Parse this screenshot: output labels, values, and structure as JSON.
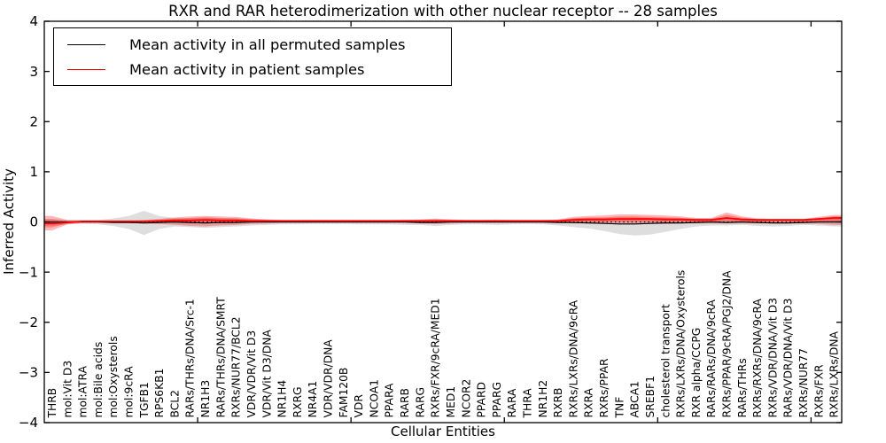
{
  "chart_data": {
    "type": "area",
    "title": "RXR and RAR heterodimerization with other nuclear receptor -- 28 samples",
    "xlabel": "Cellular Entities",
    "ylabel": "Inferred Activity",
    "ylim": [
      -4,
      4
    ],
    "y_ticks": [
      -4,
      -3,
      -2,
      -1,
      0,
      1,
      2,
      3,
      4
    ],
    "x_major_ticks": [
      10,
      20,
      30,
      40,
      50
    ],
    "grid": false,
    "background_color": "#ffffff",
    "axis_color": "#000000",
    "zero_line": {
      "y": 0,
      "style": "dotted",
      "color": "#000000"
    },
    "legend": {
      "position": "upper-left",
      "entries": [
        {
          "label": "Mean activity in all permuted samples",
          "color": "#000000"
        },
        {
          "label": "Mean activity in patient samples",
          "color": "#ff0000"
        }
      ]
    },
    "categories": [
      "THRB",
      "mol:Vit D3",
      "mol:ATRA",
      "mol:Bile acids",
      "mol:Oxysterols",
      "mol:9cRA",
      "TGFB1",
      "RPS6KB1",
      "BCL2",
      "RARs/THRs/DNA/Src-1",
      "NR1H3",
      "RARs/THRs/DNA/SMRT",
      "RXRs/NUR77/BCL2",
      "VDR/VDR/Vit D3",
      "VDR/Vit D3/DNA",
      "NR1H4",
      "RXRG",
      "NR4A1",
      "VDR/VDR/DNA",
      "FAM120B",
      "VDR",
      "NCOA1",
      "PPARA",
      "RARB",
      "RARG",
      "RXRs/FXR/9cRA/MED1",
      "MED1",
      "NCOR2",
      "PPARD",
      "PPARG",
      "RARA",
      "THRA",
      "NR1H2",
      "RXRB",
      "RXRs/LXRs/DNA/9cRA",
      "RXRA",
      "RXRs/PPAR",
      "TNF",
      "ABCA1",
      "SREBF1",
      "cholesterol transport",
      "RXRs/LXRs/DNA/Oxysterols",
      "RXR alpha/CCPG",
      "RARs/RARs/DNA/9cRA",
      "RXRs/PPAR/9cRA/PGJ2/DNA",
      "RARs/THRs",
      "RXRs/RXRs/DNA/9cRA",
      "RXRs/VDR/DNA/Vit D3",
      "RARs/VDR/DNA/Vit D3",
      "RXRs/NUR77",
      "RXRs/FXR",
      "RXRs/LXRs/DNA"
    ],
    "series": [
      {
        "name": "Mean activity in all permuted samples",
        "color": "#000000",
        "band_color": "#999999",
        "band_opacity": 0.32,
        "values": [
          0,
          0,
          0,
          0,
          -0.01,
          -0.01,
          -0.02,
          -0.01,
          0,
          -0.01,
          -0.02,
          -0.01,
          -0.01,
          0,
          0,
          0,
          0,
          0,
          0,
          0,
          0,
          0,
          0,
          0,
          -0.01,
          -0.01,
          0,
          0,
          0,
          0,
          0,
          0,
          0,
          -0.01,
          -0.01,
          -0.02,
          -0.03,
          -0.04,
          -0.04,
          -0.03,
          -0.02,
          -0.02,
          -0.01,
          0,
          -0.01,
          0,
          -0.01,
          -0.02,
          -0.02,
          -0.01,
          0,
          0
        ],
        "band_low": [
          -0.08,
          -0.05,
          -0.04,
          -0.05,
          -0.08,
          -0.14,
          -0.26,
          -0.14,
          -0.09,
          -0.1,
          -0.12,
          -0.1,
          -0.09,
          -0.07,
          -0.06,
          -0.05,
          -0.05,
          -0.04,
          -0.04,
          -0.04,
          -0.05,
          -0.05,
          -0.05,
          -0.06,
          -0.06,
          -0.08,
          -0.06,
          -0.05,
          -0.05,
          -0.06,
          -0.05,
          -0.04,
          -0.05,
          -0.07,
          -0.1,
          -0.13,
          -0.18,
          -0.24,
          -0.27,
          -0.25,
          -0.2,
          -0.14,
          -0.09,
          -0.07,
          -0.07,
          -0.06,
          -0.08,
          -0.09,
          -0.08,
          -0.06,
          -0.07,
          -0.09
        ],
        "band_high": [
          0.06,
          0.04,
          0.04,
          0.04,
          0.07,
          0.12,
          0.22,
          0.12,
          0.08,
          0.08,
          0.1,
          0.08,
          0.08,
          0.06,
          0.05,
          0.04,
          0.04,
          0.04,
          0.04,
          0.04,
          0.04,
          0.04,
          0.04,
          0.05,
          0.05,
          0.07,
          0.05,
          0.04,
          0.04,
          0.05,
          0.04,
          0.04,
          0.04,
          0.05,
          0.07,
          0.08,
          0.08,
          0.09,
          0.09,
          0.08,
          0.08,
          0.07,
          0.06,
          0.05,
          0.06,
          0.05,
          0.05,
          0.05,
          0.05,
          0.05,
          0.06,
          0.07
        ]
      },
      {
        "name": "Mean activity in patient samples",
        "color": "#ff0000",
        "band_color": "#ff0000",
        "band_opacity": 0.28,
        "values": [
          -0.03,
          -0.01,
          0.01,
          0.01,
          0.01,
          0.01,
          0.01,
          0.02,
          0.03,
          0.03,
          0.04,
          0.03,
          0.03,
          0.02,
          0.02,
          0.02,
          0.02,
          0.02,
          0.02,
          0.02,
          0.02,
          0.02,
          0.02,
          0.02,
          0.02,
          0.02,
          0.02,
          0.02,
          0.02,
          0.02,
          0.02,
          0.02,
          0.02,
          0.02,
          0.04,
          0.05,
          0.05,
          0.06,
          0.06,
          0.06,
          0.05,
          0.05,
          0.04,
          0.04,
          0.08,
          0.05,
          0.04,
          0.04,
          0.04,
          0.04,
          0.06,
          0.08
        ],
        "band_low": [
          -0.17,
          -0.05,
          -0.02,
          -0.02,
          -0.02,
          -0.02,
          -0.03,
          -0.04,
          -0.06,
          -0.08,
          -0.09,
          -0.07,
          -0.06,
          -0.04,
          -0.03,
          -0.02,
          -0.02,
          -0.02,
          -0.02,
          -0.02,
          -0.02,
          -0.02,
          -0.02,
          -0.02,
          -0.03,
          -0.04,
          -0.03,
          -0.02,
          -0.02,
          -0.02,
          -0.02,
          -0.02,
          -0.02,
          -0.02,
          -0.03,
          -0.03,
          -0.04,
          -0.04,
          -0.04,
          -0.04,
          -0.04,
          -0.03,
          -0.03,
          -0.03,
          -0.03,
          -0.03,
          -0.03,
          -0.03,
          -0.03,
          -0.03,
          -0.04,
          -0.06
        ],
        "band_high": [
          0.12,
          0.04,
          0.03,
          0.03,
          0.03,
          0.03,
          0.04,
          0.06,
          0.09,
          0.11,
          0.12,
          0.11,
          0.1,
          0.07,
          0.05,
          0.04,
          0.04,
          0.04,
          0.04,
          0.04,
          0.04,
          0.04,
          0.04,
          0.04,
          0.05,
          0.06,
          0.05,
          0.04,
          0.04,
          0.04,
          0.04,
          0.04,
          0.04,
          0.05,
          0.1,
          0.12,
          0.13,
          0.15,
          0.15,
          0.14,
          0.13,
          0.11,
          0.08,
          0.08,
          0.19,
          0.11,
          0.07,
          0.06,
          0.06,
          0.06,
          0.1,
          0.14
        ]
      }
    ]
  }
}
